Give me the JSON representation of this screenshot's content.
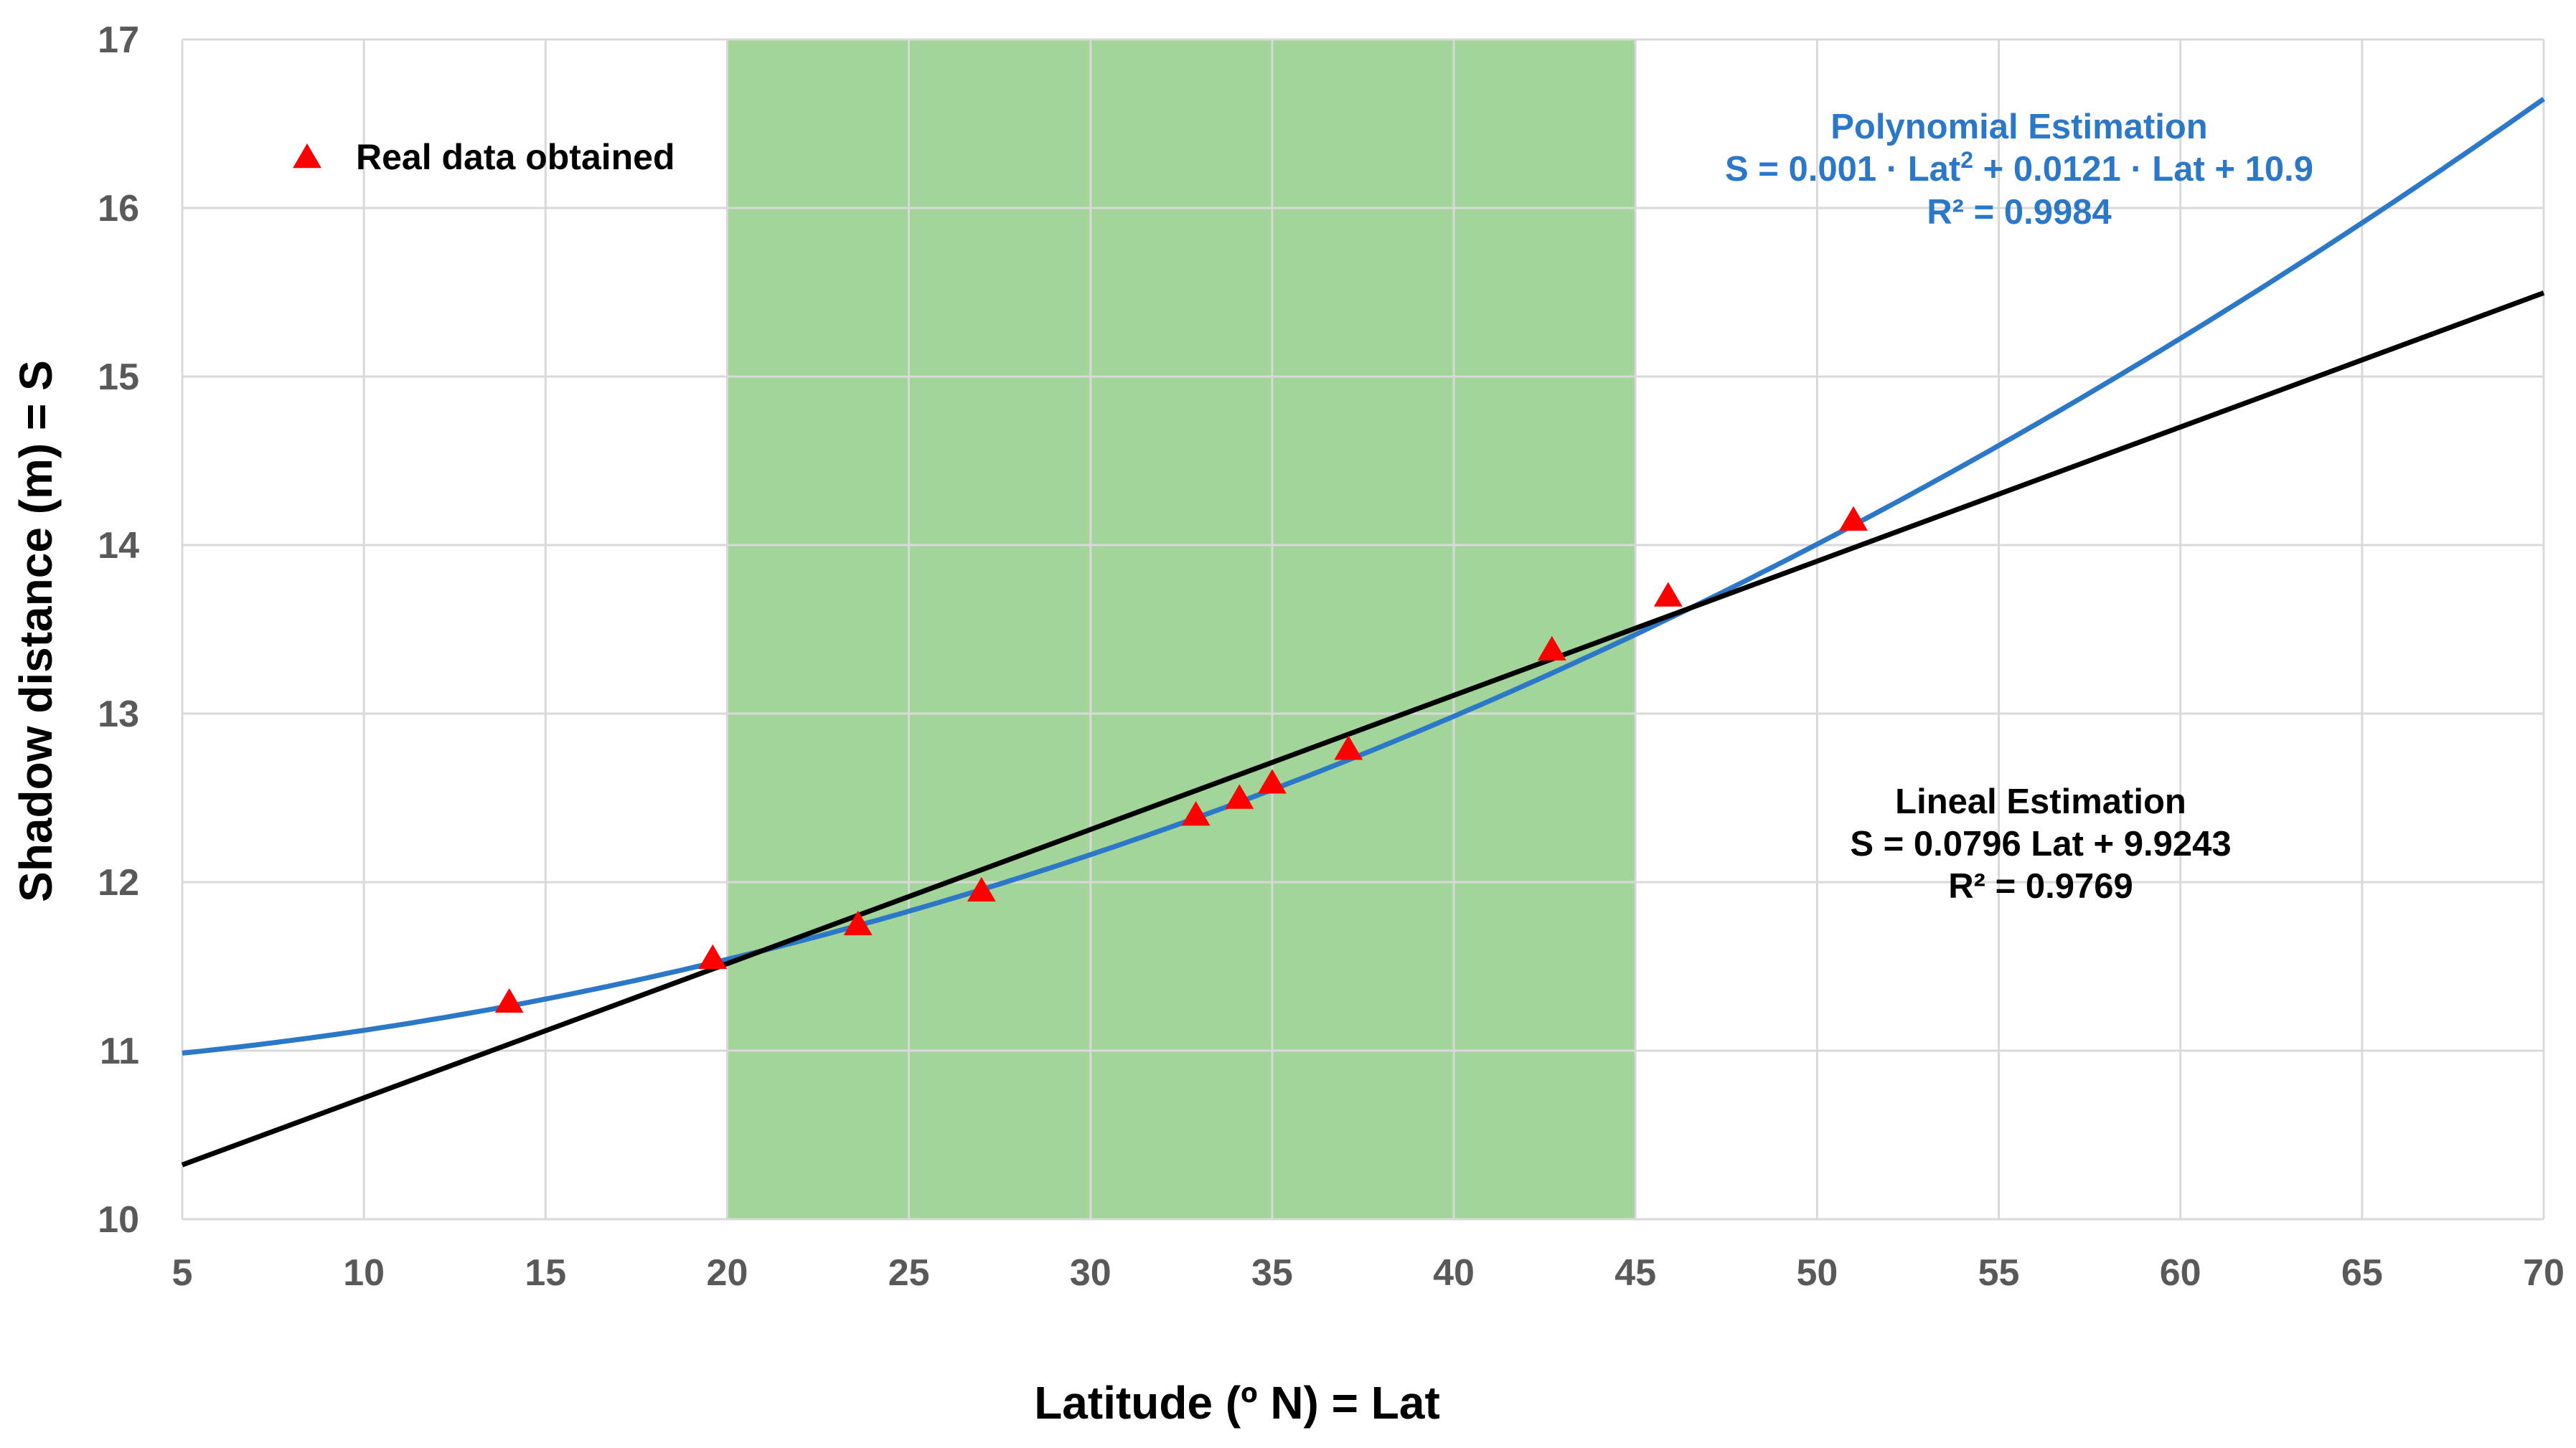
{
  "chart_data": {
    "type": "scatter",
    "xlabel": "Latitude (º N) = Lat",
    "ylabel": "Shadow distance  (m) = S",
    "xlim": [
      5,
      70
    ],
    "ylim": [
      10,
      17
    ],
    "x_ticks": [
      "5",
      "10",
      "15",
      "20",
      "25",
      "30",
      "35",
      "40",
      "45",
      "50",
      "55",
      "60",
      "65",
      "70"
    ],
    "y_ticks": [
      "10",
      "11",
      "12",
      "13",
      "14",
      "15",
      "16",
      "17"
    ],
    "grid": true,
    "highlight_band": {
      "x_from": 20,
      "x_to": 45,
      "color": "#6ab95a"
    },
    "legend": {
      "label": "Real data obtained",
      "position": "top-left"
    },
    "series": [
      {
        "name": "Real data obtained",
        "kind": "markers",
        "color": "#ff0000",
        "x": [
          14.0,
          19.6,
          23.6,
          27.0,
          32.9,
          34.1,
          35.0,
          37.1,
          42.7,
          45.9,
          51.0
        ],
        "y": [
          11.29,
          11.55,
          11.75,
          11.95,
          12.4,
          12.5,
          12.59,
          12.79,
          13.38,
          13.7,
          14.15
        ]
      },
      {
        "name": "Polynomial Estimation",
        "kind": "polynomial-fit",
        "color": "#2c78c8",
        "coefficients": {
          "a2": 0.001,
          "a1": 0.0121,
          "a0": 10.9
        }
      },
      {
        "name": "Lineal Estimation",
        "kind": "linear-fit",
        "color": "#000000",
        "coefficients": {
          "slope": 0.0796,
          "intercept": 9.9243
        }
      }
    ],
    "annotations": {
      "polynomial": {
        "title": "Polynomial Estimation",
        "eq_main": "S = 0.001 · Lat",
        "eq_exp": "2",
        "eq_rest": " + 0.0121 · Lat + 10.9",
        "r2": "R² = 0.9984",
        "color": "#2c78c8"
      },
      "linear": {
        "title": "Lineal Estimation",
        "equation": "S = 0.0796 Lat + 9.9243",
        "r2": "R² = 0.9769",
        "color": "#000000"
      }
    }
  }
}
